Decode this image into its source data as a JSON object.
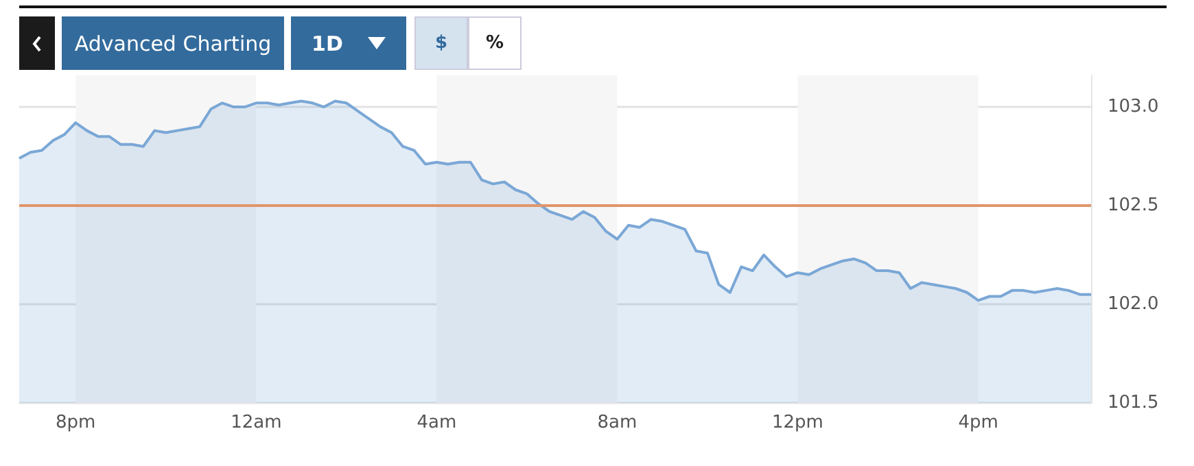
{
  "chart_data": {
    "type": "area",
    "annotations": [
      "Advanced Charting",
      "1D",
      "$",
      "%"
    ],
    "categories": [
      null,
      null,
      null,
      null,
      null,
      "8pm",
      null,
      null,
      null,
      null,
      null,
      null,
      null,
      null,
      null,
      null,
      null,
      null,
      null,
      null,
      null,
      "12am",
      null,
      null,
      null,
      null,
      null,
      null,
      null,
      null,
      null,
      null,
      null,
      null,
      null,
      null,
      null,
      "4am",
      null,
      null,
      null,
      null,
      null,
      null,
      null,
      null,
      null,
      null,
      null,
      null,
      null,
      null,
      null,
      "8am",
      null,
      null,
      null,
      null,
      null,
      null,
      null,
      null,
      null,
      null,
      null,
      null,
      null,
      null,
      null,
      "12pm",
      null,
      null,
      null,
      null,
      null,
      null,
      null,
      null,
      null,
      null,
      null,
      null,
      null,
      null,
      null,
      "4pm",
      null,
      null,
      null,
      null,
      null,
      null,
      null,
      null,
      null,
      null
    ],
    "series": [
      {
        "color": "#7aa7d6",
        "values": [
          102.74,
          102.77,
          102.78,
          102.83,
          102.86,
          102.92,
          102.88,
          102.85,
          102.85,
          102.81,
          102.81,
          102.8,
          102.88,
          102.87,
          102.88,
          102.89,
          102.9,
          102.99,
          103.02,
          103.0,
          103.0,
          103.02,
          103.02,
          103.01,
          103.02,
          103.03,
          103.02,
          103.0,
          103.03,
          103.02,
          102.98,
          102.94,
          102.9,
          102.87,
          102.8,
          102.78,
          102.71,
          102.72,
          102.71,
          102.72,
          102.72,
          102.63,
          102.61,
          102.62,
          102.58,
          102.56,
          102.51,
          102.47,
          102.45,
          102.43,
          102.47,
          102.44,
          102.37,
          102.33,
          102.4,
          102.39,
          102.43,
          102.42,
          102.4,
          102.38,
          102.27,
          102.26,
          102.1,
          102.06,
          102.19,
          102.17,
          102.25,
          102.19,
          102.14,
          102.16,
          102.15,
          102.18,
          102.2,
          102.22,
          102.23,
          102.21,
          102.17,
          102.17,
          102.16,
          102.08,
          102.11,
          102.1,
          102.09,
          102.08,
          102.06,
          102.02,
          102.04,
          102.04,
          102.07,
          102.07,
          102.06,
          102.07,
          102.08,
          102.07,
          102.05,
          102.05
        ]
      }
    ],
    "ylim": [
      101.5,
      103.16
    ],
    "yticks": [
      {
        "value": 101.5,
        "label": "101.5"
      },
      {
        "value": 102,
        "label": "102.0"
      },
      {
        "value": 102.5,
        "label": "102.5"
      },
      {
        "value": 103,
        "label": "103.0"
      }
    ],
    "grid": "y",
    "ref_lines": [
      {
        "axis": "y",
        "value": 102.5,
        "color": "#e0956a"
      }
    ],
    "bands": [
      {
        "axis": "x",
        "from": "8pm",
        "to": "12am",
        "color": "#f6f6f6"
      },
      {
        "axis": "x",
        "from": "4am",
        "to": "8am",
        "color": "#f6f6f6"
      },
      {
        "axis": "x",
        "from": "12pm",
        "to": "4pm",
        "color": "#f6f6f6"
      }
    ]
  }
}
